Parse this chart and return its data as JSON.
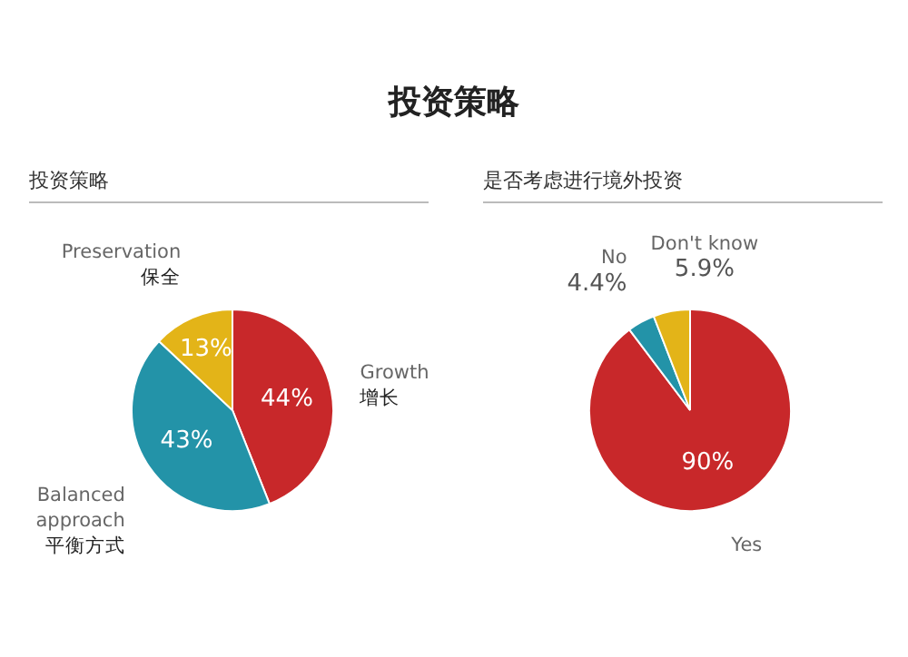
{
  "chart_data": [
    {
      "type": "pie",
      "title": "投资策略",
      "subtitle": "投资策略",
      "categories": [
        "Growth\n增长",
        "Balanced\napproach\n平衡方式",
        "Preservation\n保全"
      ],
      "values": [
        44,
        43,
        13
      ],
      "colors": [
        "#c8282a",
        "#2393a8",
        "#e3b418"
      ],
      "value_labels": [
        "44%",
        "43%",
        "13%"
      ],
      "legend": false
    },
    {
      "type": "pie",
      "title": "是否考虑进行境外投资",
      "categories": [
        "Yes",
        "No",
        "Don't know"
      ],
      "values": [
        90,
        4.4,
        5.9
      ],
      "colors": [
        "#c8282a",
        "#2393a8",
        "#e3b418"
      ],
      "value_labels": [
        "90%",
        "4.4%",
        "5.9%"
      ],
      "legend": false
    }
  ]
}
